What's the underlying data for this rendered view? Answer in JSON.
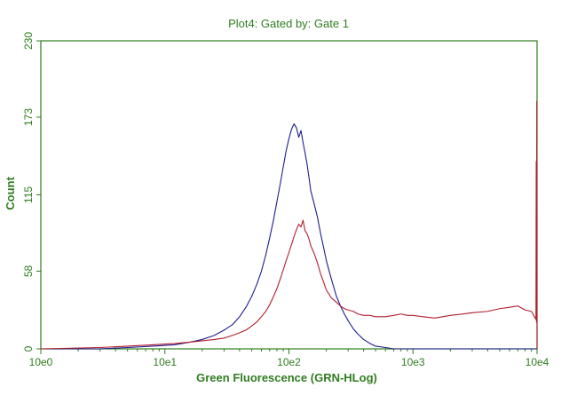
{
  "chart_data": {
    "type": "line",
    "title": "Plot4:  Gated by: Gate 1",
    "xlabel": "Green Fluorescence (GRN-HLog)",
    "ylabel": "Count",
    "x_scale": "log",
    "xlim": [
      1,
      10000
    ],
    "ylim": [
      0,
      230
    ],
    "xticks": [
      1,
      10,
      100,
      1000,
      10000
    ],
    "xtick_labels": [
      "10e0",
      "10e1",
      "10e2",
      "10e3",
      "10e4"
    ],
    "yticks": [
      0,
      58,
      115,
      173,
      230
    ],
    "ytick_labels": [
      "0",
      "58",
      "115",
      "173",
      "230"
    ],
    "grid": false,
    "legend": "none",
    "colors": {
      "text": "#2f7d1f",
      "axis": "#2f7d1f",
      "series_blue": "#1d1d8e",
      "series_red": "#b01f2d"
    },
    "series": [
      {
        "color": "#1d1d8e",
        "x": [
          1,
          3,
          5,
          8,
          12,
          16,
          20,
          25,
          30,
          35,
          40,
          45,
          50,
          55,
          60,
          65,
          70,
          75,
          80,
          85,
          90,
          95,
          100,
          105,
          110,
          115,
          120,
          125,
          130,
          135,
          140,
          145,
          150,
          160,
          170,
          180,
          190,
          200,
          220,
          240,
          260,
          280,
          300,
          330,
          360,
          400,
          450,
          500,
          600,
          700,
          800,
          900,
          1000,
          1200,
          1500,
          2000,
          3000,
          5000,
          10000
        ],
        "y": [
          0,
          0,
          1,
          2,
          3,
          5,
          7,
          10,
          14,
          18,
          24,
          31,
          39,
          48,
          58,
          70,
          83,
          96,
          110,
          123,
          136,
          148,
          157,
          164,
          168,
          165,
          158,
          163,
          154,
          146,
          138,
          128,
          118,
          108,
          98,
          86,
          76,
          66,
          52,
          40,
          32,
          26,
          21,
          15,
          11,
          7,
          4,
          2,
          1,
          0,
          0,
          0,
          0,
          0,
          0,
          0,
          0,
          0,
          0
        ]
      },
      {
        "color": "#b01f2d",
        "x": [
          1,
          3,
          5,
          8,
          12,
          16,
          20,
          25,
          30,
          35,
          40,
          45,
          50,
          55,
          60,
          65,
          70,
          75,
          80,
          85,
          90,
          95,
          100,
          105,
          110,
          115,
          120,
          125,
          130,
          135,
          140,
          145,
          150,
          160,
          170,
          180,
          190,
          200,
          220,
          240,
          260,
          280,
          300,
          330,
          360,
          400,
          450,
          500,
          600,
          700,
          800,
          900,
          1000,
          1200,
          1500,
          2000,
          2500,
          3000,
          4000,
          5000,
          6000,
          7000,
          8000,
          9000,
          9800,
          9850,
          9900,
          9950,
          10000
        ],
        "y": [
          0,
          1,
          2,
          3,
          4,
          5,
          6,
          7,
          8,
          10,
          12,
          14,
          17,
          20,
          24,
          28,
          33,
          39,
          45,
          52,
          59,
          66,
          72,
          78,
          84,
          89,
          93,
          91,
          96,
          88,
          86,
          82,
          77,
          71,
          64,
          56,
          50,
          44,
          38,
          35,
          32,
          30,
          29,
          28,
          26,
          25,
          25,
          24,
          24,
          25,
          26,
          25,
          25,
          24,
          23,
          25,
          26,
          27,
          28,
          30,
          31,
          32,
          29,
          28,
          22,
          140,
          20,
          185,
          0
        ]
      }
    ]
  }
}
